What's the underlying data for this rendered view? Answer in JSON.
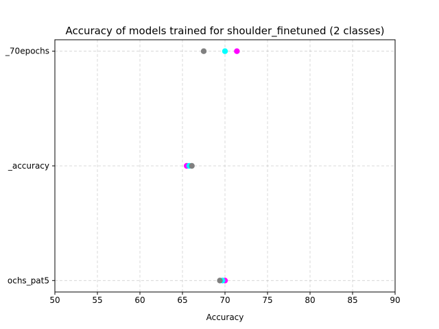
{
  "chart_data": {
    "type": "scatter",
    "title": "Accuracy of models trained for shoulder_finetuned (2 classes)",
    "xlabel": "Accuracy",
    "ylabel": "",
    "xlim": [
      50,
      90
    ],
    "xticks": [
      50,
      55,
      60,
      65,
      70,
      75,
      80,
      85,
      90
    ],
    "categories": [
      "_70epochs",
      "_accuracy",
      "ochs_pat5"
    ],
    "grid": true,
    "points": [
      {
        "category": "_70epochs",
        "x": 67.5,
        "color": "#808080"
      },
      {
        "category": "_70epochs",
        "x": 70.0,
        "color": "#00ffff"
      },
      {
        "category": "_70epochs",
        "x": 71.4,
        "color": "#ff00ff"
      },
      {
        "category": "_accuracy",
        "x": 65.5,
        "color": "#ff00ff"
      },
      {
        "category": "_accuracy",
        "x": 65.8,
        "color": "#00ffff"
      },
      {
        "category": "_accuracy",
        "x": 66.1,
        "color": "#808080"
      },
      {
        "category": "ochs_pat5",
        "x": 70.0,
        "color": "#ff00ff"
      },
      {
        "category": "ochs_pat5",
        "x": 69.7,
        "color": "#00ffff"
      },
      {
        "category": "ochs_pat5",
        "x": 69.4,
        "color": "#808080"
      }
    ]
  }
}
